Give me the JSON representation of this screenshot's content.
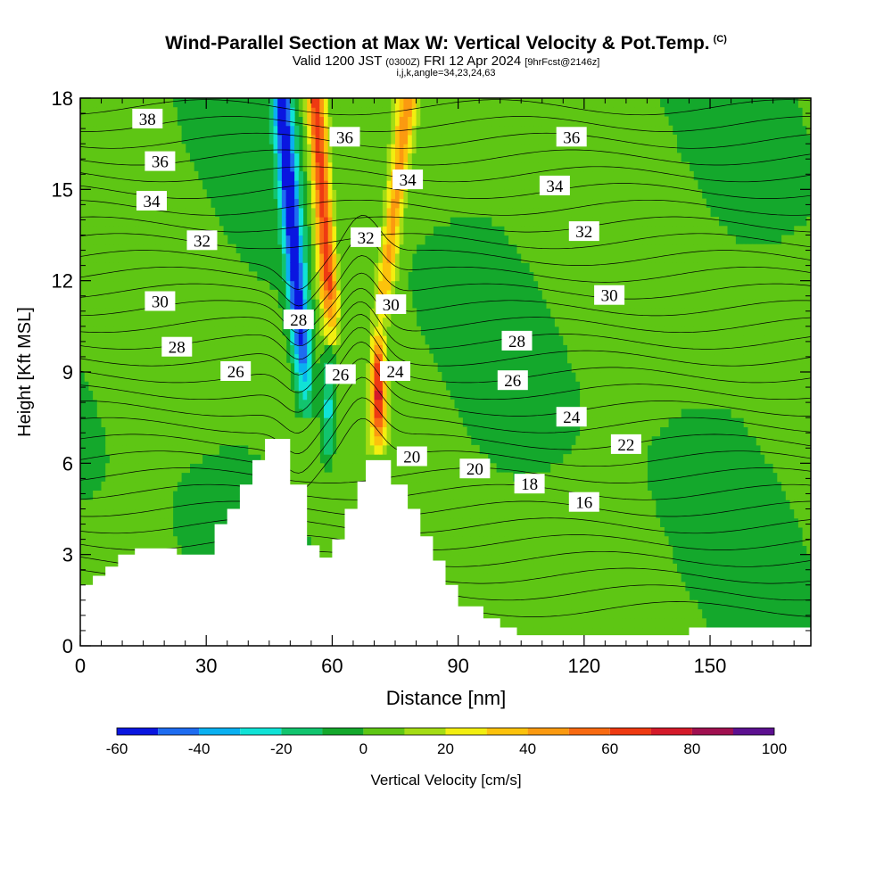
{
  "title": {
    "main": "Wind-Parallel Section at Max W: Vertical Velocity & Pot.Temp.",
    "copyright": "(C)",
    "valid_prefix": "Valid 1200 JST",
    "valid_utc": "(0300Z)",
    "valid_date": "FRI 12 Apr 2024",
    "forecast": "[9hrFcst@2146z]",
    "params": "i,j,k,angle=34,23,24,63"
  },
  "chart_data": {
    "type": "heatmap",
    "xlabel": "Distance [nm]",
    "ylabel": "Height [Kft MSL]",
    "xlim": [
      0,
      174
    ],
    "ylim": [
      0,
      18
    ],
    "xticks": [
      0,
      30,
      60,
      90,
      120,
      150
    ],
    "yticks": [
      0,
      3,
      6,
      9,
      12,
      15,
      18
    ],
    "colorbar": {
      "label": "Vertical Velocity [cm/s]",
      "ticks": [
        -60,
        -40,
        -20,
        0,
        20,
        40,
        60,
        80,
        100
      ],
      "bins": [
        {
          "from": -60,
          "to": -50,
          "color": "#0a16e0"
        },
        {
          "from": -50,
          "to": -40,
          "color": "#1e6cf0"
        },
        {
          "from": -40,
          "to": -30,
          "color": "#0ab0f0"
        },
        {
          "from": -30,
          "to": -20,
          "color": "#10e2d6"
        },
        {
          "from": -20,
          "to": -10,
          "color": "#12c46e"
        },
        {
          "from": -10,
          "to": 0,
          "color": "#14a82c"
        },
        {
          "from": 0,
          "to": 10,
          "color": "#5ec614"
        },
        {
          "from": 10,
          "to": 20,
          "color": "#a4dc14"
        },
        {
          "from": 20,
          "to": 30,
          "color": "#f2ee10"
        },
        {
          "from": 30,
          "to": 40,
          "color": "#fcc20c"
        },
        {
          "from": 40,
          "to": 50,
          "color": "#fb9a10"
        },
        {
          "from": 50,
          "to": 60,
          "color": "#f86a12"
        },
        {
          "from": 60,
          "to": 70,
          "color": "#ee3a12"
        },
        {
          "from": 70,
          "to": 80,
          "color": "#d41a2a"
        },
        {
          "from": 80,
          "to": 90,
          "color": "#a01050"
        },
        {
          "from": 90,
          "to": 100,
          "color": "#5c1090"
        }
      ]
    },
    "terrain": [
      [
        0,
        2
      ],
      [
        3,
        2
      ],
      [
        3,
        2.3
      ],
      [
        6,
        2.3
      ],
      [
        6,
        2.6
      ],
      [
        9,
        2.6
      ],
      [
        9,
        3
      ],
      [
        13,
        3
      ],
      [
        13,
        3.2
      ],
      [
        23,
        3.2
      ],
      [
        23,
        3
      ],
      [
        32,
        3
      ],
      [
        32,
        4
      ],
      [
        35,
        4
      ],
      [
        35,
        4.5
      ],
      [
        38,
        4.5
      ],
      [
        38,
        5.3
      ],
      [
        41,
        5.3
      ],
      [
        41,
        6.1
      ],
      [
        44,
        6.1
      ],
      [
        44,
        6.8
      ],
      [
        50,
        6.8
      ],
      [
        50,
        5.3
      ],
      [
        54,
        5.3
      ],
      [
        54,
        3.3
      ],
      [
        57,
        3.3
      ],
      [
        57,
        2.9
      ],
      [
        60,
        2.9
      ],
      [
        60,
        3.5
      ],
      [
        63,
        3.5
      ],
      [
        63,
        4.5
      ],
      [
        66,
        4.5
      ],
      [
        66,
        5.4
      ],
      [
        68,
        5.4
      ],
      [
        68,
        6.1
      ],
      [
        74,
        6.1
      ],
      [
        74,
        5.3
      ],
      [
        78,
        5.3
      ],
      [
        78,
        4.5
      ],
      [
        81,
        4.5
      ],
      [
        81,
        3.6
      ],
      [
        84,
        3.6
      ],
      [
        84,
        2.8
      ],
      [
        87,
        2.8
      ],
      [
        87,
        2
      ],
      [
        90,
        2
      ],
      [
        90,
        1.3
      ],
      [
        96,
        1.3
      ],
      [
        96,
        0.9
      ],
      [
        100,
        0.9
      ],
      [
        100,
        0.6
      ],
      [
        104,
        0.6
      ],
      [
        104,
        0.35
      ],
      [
        145,
        0.35
      ],
      [
        145,
        0.6
      ],
      [
        174,
        0.6
      ]
    ],
    "updrafts": [
      {
        "name": "upper-left-downdraft",
        "x_at_top": 48,
        "x_at_base": 54,
        "base_height": 7.5,
        "w_max": -60
      },
      {
        "name": "upper-left-updraft",
        "x_at_top": 56,
        "x_at_base": 60,
        "base_height": 10,
        "w_max": 65
      },
      {
        "name": "upper-right-updraft",
        "x_at_top": 78,
        "x_at_base": 71,
        "base_height": 10,
        "w_max": 40
      },
      {
        "name": "lower-updraft",
        "x": 71,
        "height_range": [
          6.2,
          10.5
        ],
        "w_max": 70
      },
      {
        "name": "lower-downdraft",
        "x": 59,
        "height_range": [
          5.5,
          10
        ],
        "w_max": -30
      }
    ],
    "isentrope_labels": [
      {
        "text": "38",
        "x": 16,
        "y": 17.3
      },
      {
        "text": "36",
        "x": 19,
        "y": 15.9
      },
      {
        "text": "34",
        "x": 17,
        "y": 14.6
      },
      {
        "text": "32",
        "x": 29,
        "y": 13.3
      },
      {
        "text": "30",
        "x": 19,
        "y": 11.3
      },
      {
        "text": "28",
        "x": 23,
        "y": 9.8
      },
      {
        "text": "26",
        "x": 37,
        "y": 9.0
      },
      {
        "text": "36",
        "x": 63,
        "y": 16.7
      },
      {
        "text": "34",
        "x": 78,
        "y": 15.3
      },
      {
        "text": "32",
        "x": 68,
        "y": 13.4
      },
      {
        "text": "30",
        "x": 74,
        "y": 11.2
      },
      {
        "text": "28",
        "x": 52,
        "y": 10.7
      },
      {
        "text": "26",
        "x": 62,
        "y": 8.9
      },
      {
        "text": "24",
        "x": 75,
        "y": 9.0
      },
      {
        "text": "20",
        "x": 79,
        "y": 6.2
      },
      {
        "text": "36",
        "x": 117,
        "y": 16.7
      },
      {
        "text": "34",
        "x": 113,
        "y": 15.1
      },
      {
        "text": "32",
        "x": 120,
        "y": 13.6
      },
      {
        "text": "30",
        "x": 126,
        "y": 11.5
      },
      {
        "text": "28",
        "x": 104,
        "y": 10.0
      },
      {
        "text": "26",
        "x": 103,
        "y": 8.7
      },
      {
        "text": "24",
        "x": 117,
        "y": 7.5
      },
      {
        "text": "22",
        "x": 130,
        "y": 6.6
      },
      {
        "text": "20",
        "x": 94,
        "y": 5.8
      },
      {
        "text": "18",
        "x": 107,
        "y": 5.3
      },
      {
        "text": "16",
        "x": 120,
        "y": 4.7
      }
    ]
  }
}
